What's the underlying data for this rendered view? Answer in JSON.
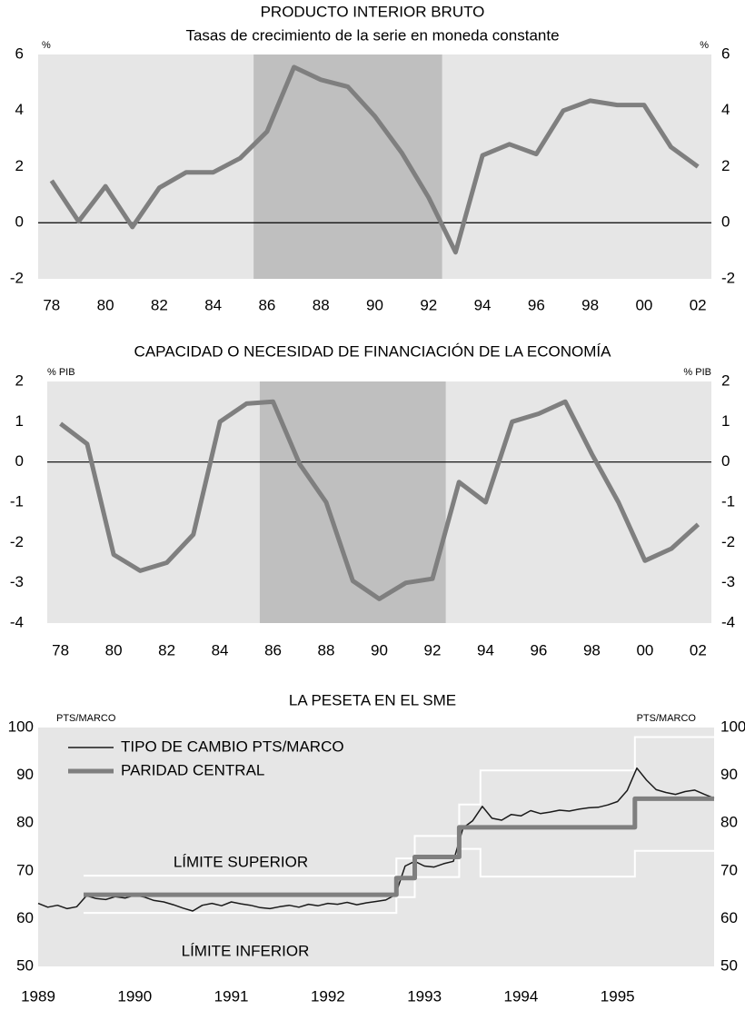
{
  "chart_data": [
    {
      "type": "line",
      "title": "PRODUCTO INTERIOR BRUTO",
      "subtitle": "Tasas de crecimiento de la serie en moneda constante",
      "y_unit": "%",
      "categories": [
        "78",
        null,
        "80",
        null,
        "82",
        null,
        "84",
        null,
        "86",
        null,
        "88",
        null,
        "90",
        null,
        "92",
        null,
        "94",
        null,
        "96",
        null,
        "98",
        null,
        "00",
        null,
        "02"
      ],
      "values": [
        1.5,
        0.05,
        1.3,
        -0.15,
        1.25,
        1.8,
        1.8,
        2.3,
        3.25,
        5.55,
        5.1,
        4.85,
        3.8,
        2.5,
        0.9,
        -1.05,
        2.4,
        2.8,
        2.45,
        4.0,
        4.35,
        4.2,
        4.2,
        2.7,
        2.0
      ],
      "color": "#7f7f7f",
      "background": "#e6e6e6",
      "shaded": {
        "from": "86",
        "to": "92",
        "color": "#bfbfbf"
      },
      "zero_line": true,
      "grid": false,
      "ylim": [
        -2,
        6
      ],
      "yticks": [
        -2,
        0,
        2,
        4,
        6
      ]
    },
    {
      "type": "line",
      "title": "CAPACIDAD O NECESIDAD DE FINANCIACIÓN DE LA ECONOMÍA",
      "y_unit": "% PIB",
      "categories": [
        "78",
        null,
        "80",
        null,
        "82",
        null,
        "84",
        null,
        "86",
        null,
        "88",
        null,
        "90",
        null,
        "92",
        null,
        "94",
        null,
        "96",
        null,
        "98",
        null,
        "00",
        null,
        "02"
      ],
      "values": [
        0.95,
        0.45,
        -2.3,
        -2.7,
        -2.5,
        -1.8,
        1.0,
        1.45,
        1.5,
        -0.05,
        -1.0,
        -2.95,
        -3.4,
        -3.0,
        -2.9,
        -0.5,
        -1.0,
        1.0,
        1.2,
        1.5,
        0.2,
        -1.0,
        -2.45,
        -2.15,
        -1.55
      ],
      "color": "#7f7f7f",
      "background": "#e6e6e6",
      "shaded": {
        "from": "86",
        "to": "92",
        "color": "#bfbfbf"
      },
      "zero_line": true,
      "grid": false,
      "ylim": [
        -4,
        2
      ],
      "yticks": [
        -4,
        -3,
        -2,
        -1,
        0,
        1,
        2
      ]
    },
    {
      "type": "line",
      "title": "LA PESETA EN EL SME",
      "y_unit": "PTS/MARCO",
      "background": "#e6e6e6",
      "grid": false,
      "legend": "upper left",
      "xlim": [
        1989,
        1996
      ],
      "xticks": [
        1989,
        1990,
        1991,
        1992,
        1993,
        1994,
        1995
      ],
      "ylim": [
        50,
        100
      ],
      "yticks": [
        50,
        60,
        70,
        80,
        90,
        100
      ],
      "series": [
        {
          "name": "TIPO DE CAMBIO PTS/MARCO",
          "color": "#1a1a1a",
          "width": 1.5,
          "x": [
            1989.0,
            1989.1,
            1989.2,
            1989.3,
            1989.4,
            1989.5,
            1989.6,
            1989.7,
            1989.8,
            1989.9,
            1990.0,
            1990.1,
            1990.2,
            1990.3,
            1990.4,
            1990.5,
            1990.6,
            1990.7,
            1990.8,
            1990.9,
            1991.0,
            1991.1,
            1991.2,
            1991.3,
            1991.4,
            1991.5,
            1991.6,
            1991.7,
            1991.8,
            1991.9,
            1992.0,
            1992.1,
            1992.2,
            1992.3,
            1992.4,
            1992.5,
            1992.6,
            1992.7,
            1992.8,
            1992.9,
            1993.0,
            1993.1,
            1993.2,
            1993.3,
            1993.4,
            1993.5,
            1993.6,
            1993.7,
            1993.8,
            1993.9,
            1994.0,
            1994.1,
            1994.2,
            1994.3,
            1994.4,
            1994.5,
            1994.6,
            1994.7,
            1994.8,
            1994.9,
            1995.0,
            1995.1,
            1995.2,
            1995.3,
            1995.4,
            1995.5,
            1995.6,
            1995.7,
            1995.8,
            1995.9,
            1996.0
          ],
          "values": [
            63.2,
            62.4,
            62.8,
            62.1,
            62.5,
            64.8,
            64.2,
            64.0,
            64.6,
            64.3,
            64.9,
            64.5,
            63.8,
            63.5,
            62.9,
            62.2,
            61.6,
            62.8,
            63.2,
            62.7,
            63.5,
            63.1,
            62.8,
            62.3,
            62.1,
            62.5,
            62.8,
            62.4,
            63.0,
            62.7,
            63.2,
            63.0,
            63.4,
            62.9,
            63.3,
            63.6,
            63.9,
            65.0,
            71.0,
            72.0,
            71.0,
            70.8,
            71.5,
            72.0,
            79.0,
            80.5,
            83.5,
            81.0,
            80.6,
            81.8,
            81.5,
            82.6,
            82.0,
            82.3,
            82.7,
            82.5,
            82.9,
            83.2,
            83.3,
            83.8,
            84.5,
            86.8,
            91.5,
            89.0,
            87.0,
            86.4,
            86.0,
            86.6,
            86.9,
            86.0,
            85.2
          ]
        },
        {
          "name": "PARIDAD CENTRAL",
          "color": "#7f7f7f",
          "width": 5,
          "x": [
            1989.47,
            1992.71,
            1992.71,
            1992.9,
            1992.9,
            1993.36,
            1993.36,
            1995.18,
            1995.18,
            1996
          ],
          "values": [
            65,
            65,
            68.5,
            68.5,
            72.9,
            72.9,
            79.1,
            79.1,
            85.1,
            85.1
          ]
        }
      ],
      "limits": [
        {
          "name": "LÍMITE SUPERIOR",
          "color": "#ffffff",
          "x": [
            1989.47,
            1992.71,
            1992.71,
            1992.9,
            1992.9,
            1993.36,
            1993.36,
            1993.58,
            1993.58,
            1995.18,
            1995.18,
            1996
          ],
          "values": [
            69,
            69,
            72.6,
            72.6,
            77.3,
            77.3,
            83.9,
            83.9,
            91,
            91,
            98,
            98
          ]
        },
        {
          "name": "LÍMITE INFERIOR",
          "color": "#ffffff",
          "x": [
            1989.47,
            1992.71,
            1992.71,
            1992.9,
            1992.9,
            1993.36,
            1993.36,
            1993.58,
            1993.58,
            1995.18,
            1995.18,
            1996
          ],
          "values": [
            61.2,
            61.2,
            64.5,
            64.5,
            68.7,
            68.7,
            74.6,
            74.6,
            68.8,
            68.8,
            74.2,
            74.2
          ]
        }
      ]
    }
  ]
}
